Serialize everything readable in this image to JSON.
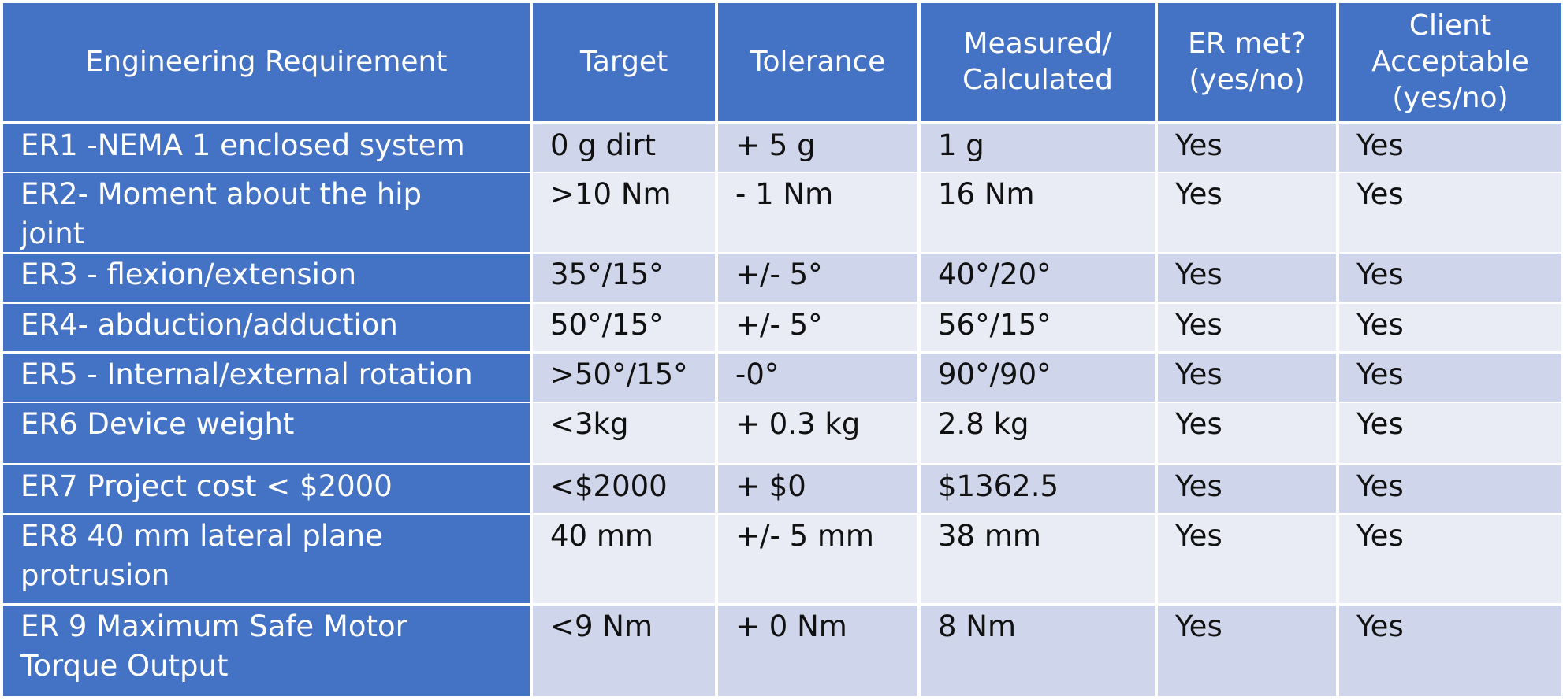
{
  "table": {
    "header": [
      [
        "Engineering Requirement"
      ],
      [
        "Target"
      ],
      [
        "Tolerance"
      ],
      [
        "Measured/",
        "Calculated"
      ],
      [
        "ER met?",
        "(yes/no)"
      ],
      [
        "Client",
        "Acceptable",
        "(yes/no)"
      ]
    ],
    "rows": [
      [
        [
          "ER1 -NEMA 1 enclosed system"
        ],
        "0 g dirt",
        "+ 5 g",
        "1 g",
        "Yes",
        "Yes"
      ],
      [
        [
          "ER2- Moment about the hip",
          "joint"
        ],
        ">10 Nm",
        "- 1 Nm",
        "16 Nm",
        "Yes",
        "Yes"
      ],
      [
        [
          "ER3 - flexion/extension"
        ],
        "35°/15°",
        "+/- 5°",
        "40°/20°",
        "Yes",
        "Yes"
      ],
      [
        [
          "ER4- abduction/adduction"
        ],
        "50°/15°",
        "+/- 5°",
        "56°/15°",
        "Yes",
        "Yes"
      ],
      [
        [
          "ER5 - Internal/external rotation"
        ],
        ">50°/15°",
        "-0°",
        "90°/90°",
        "Yes",
        "Yes"
      ],
      [
        [
          "ER6 Device weight"
        ],
        "<3kg",
        "+ 0.3 kg",
        "2.8 kg",
        "Yes",
        "Yes"
      ],
      [
        [
          "ER7 Project cost < $2000"
        ],
        "<$2000",
        "+ $0",
        "$1362.5",
        "Yes",
        "Yes"
      ],
      [
        [
          "ER8 40 mm lateral plane",
          "protrusion"
        ],
        "40 mm",
        "+/- 5 mm",
        "38 mm",
        "Yes",
        "Yes"
      ],
      [
        [
          "ER 9 Maximum Safe Motor",
          "Torque Output"
        ],
        "<9 Nm",
        "+ 0 Nm",
        "8 Nm",
        "Yes",
        "Yes"
      ]
    ]
  }
}
